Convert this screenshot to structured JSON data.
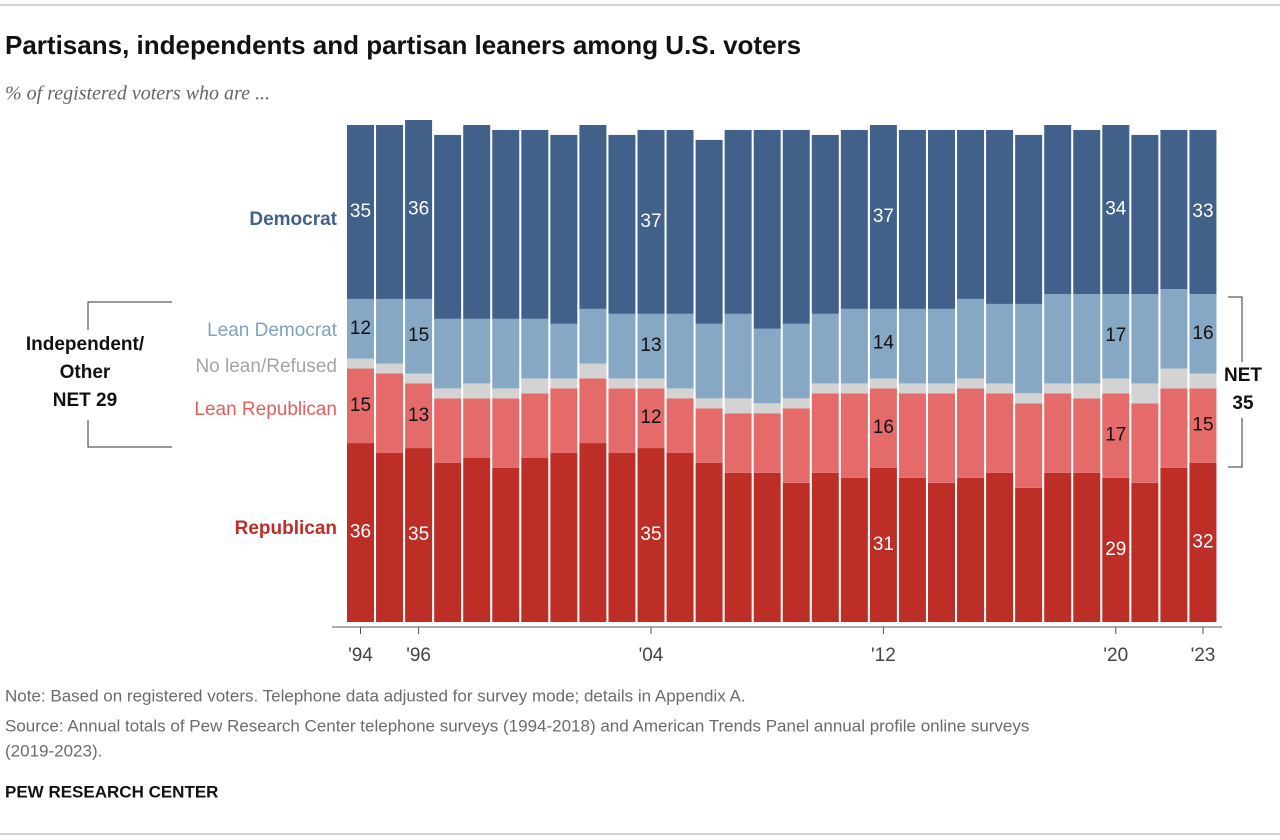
{
  "chart_data": {
    "type": "stacked-bar",
    "title": "Partisans, independents and partisan leaners among U.S. voters",
    "subtitle": "% of registered voters who are ...",
    "categories": [
      "'94",
      null,
      "'96",
      null,
      null,
      null,
      null,
      null,
      null,
      null,
      "'04",
      null,
      null,
      null,
      null,
      null,
      null,
      null,
      "'12",
      null,
      null,
      null,
      null,
      null,
      null,
      null,
      "'20",
      null,
      null,
      "'23"
    ],
    "series": [
      {
        "name": "Democrat",
        "color": "#41618a",
        "values": [
          35,
          35,
          36,
          37,
          39,
          38,
          38,
          38,
          37,
          36,
          37,
          37,
          37,
          37,
          40,
          39,
          36,
          36,
          37,
          36,
          36,
          34,
          35,
          34,
          34,
          33,
          34,
          32,
          32,
          33
        ],
        "value_labels": [
          35,
          null,
          36,
          null,
          null,
          null,
          null,
          null,
          null,
          null,
          37,
          null,
          null,
          null,
          null,
          null,
          null,
          null,
          37,
          null,
          null,
          null,
          null,
          null,
          null,
          null,
          34,
          null,
          null,
          33
        ]
      },
      {
        "name": "Lean Democrat",
        "color": "#86a8c5",
        "values": [
          12,
          13,
          15,
          14,
          13,
          14,
          12,
          11,
          11,
          13,
          13,
          15,
          15,
          17,
          15,
          15,
          14,
          15,
          14,
          15,
          15,
          16,
          16,
          18,
          18,
          18,
          17,
          18,
          16,
          16
        ],
        "value_labels": [
          12,
          null,
          15,
          null,
          null,
          null,
          null,
          null,
          null,
          null,
          13,
          null,
          null,
          null,
          null,
          null,
          null,
          null,
          14,
          null,
          null,
          null,
          null,
          null,
          null,
          null,
          17,
          null,
          null,
          16
        ]
      },
      {
        "name": "No lean/Refused",
        "color": "#d3d3d3",
        "values": [
          2,
          2,
          2,
          2,
          3,
          2,
          3,
          2,
          3,
          2,
          2,
          2,
          2,
          3,
          2,
          2,
          2,
          2,
          2,
          2,
          2,
          2,
          2,
          2,
          2,
          3,
          3,
          4,
          4,
          3
        ]
      },
      {
        "name": "Lean Republican",
        "color": "#e56b6b",
        "values": [
          15,
          16,
          13,
          13,
          12,
          14,
          13,
          13,
          13,
          13,
          12,
          11,
          11,
          12,
          12,
          15,
          16,
          17,
          16,
          17,
          18,
          18,
          16,
          17,
          16,
          15,
          17,
          16,
          16,
          15
        ],
        "value_labels": [
          15,
          null,
          13,
          null,
          null,
          null,
          null,
          null,
          null,
          null,
          12,
          null,
          null,
          null,
          null,
          null,
          null,
          null,
          16,
          null,
          null,
          null,
          null,
          null,
          null,
          null,
          17,
          null,
          null,
          15
        ]
      },
      {
        "name": "Republican",
        "color": "#bd2e27",
        "values": [
          36,
          34,
          35,
          32,
          33,
          31,
          33,
          34,
          36,
          34,
          35,
          34,
          32,
          30,
          30,
          28,
          30,
          29,
          31,
          29,
          28,
          29,
          30,
          27,
          30,
          30,
          29,
          28,
          31,
          32
        ],
        "value_labels": [
          36,
          null,
          35,
          null,
          null,
          null,
          null,
          null,
          null,
          null,
          35,
          null,
          null,
          null,
          null,
          null,
          null,
          null,
          31,
          null,
          null,
          null,
          null,
          null,
          null,
          null,
          29,
          null,
          null,
          32
        ]
      }
    ],
    "annotations": {
      "left_bracket": [
        "Independent/",
        "Other",
        "NET 29"
      ],
      "right_bracket": [
        "NET",
        "35"
      ]
    },
    "note": "Note: Based on registered voters. Telephone data adjusted for survey mode; details in Appendix A.",
    "source": [
      "Source: Annual totals of Pew Research Center telephone surveys (1994-2018) and American Trends Panel annual profile online surveys",
      "(2019-2023)."
    ],
    "footer": "PEW RESEARCH CENTER"
  }
}
